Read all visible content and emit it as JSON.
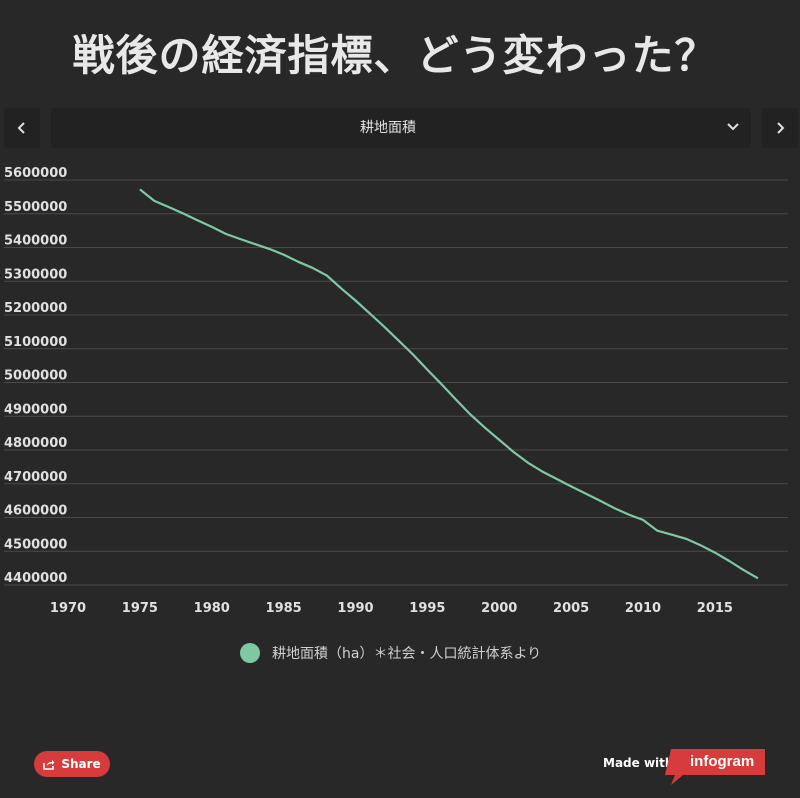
{
  "header": {
    "title": "戦後の経済指標、どう変わった？"
  },
  "nav": {
    "prev_icon": "chevron-left-icon",
    "next_icon": "chevron-right-icon",
    "selected": "耕地面積",
    "dropdown_icon": "chevron-down-icon"
  },
  "chart_data": {
    "type": "line",
    "title": "",
    "xlabel": "",
    "ylabel": "",
    "xlim": [
      1970,
      2018
    ],
    "ylim": [
      4400000,
      5600000
    ],
    "x_ticks": [
      "1970",
      "1975",
      "1980",
      "1985",
      "1990",
      "1995",
      "2000",
      "2005",
      "2010",
      "2015"
    ],
    "y_ticks": [
      "4400000",
      "4500000",
      "4600000",
      "4700000",
      "4800000",
      "4900000",
      "5000000",
      "5100000",
      "5200000",
      "5300000",
      "5400000",
      "5500000",
      "5600000"
    ],
    "grid": true,
    "legend_position": "bottom",
    "series": [
      {
        "name": "耕地面積（ha）＊社会・人口統計体系より",
        "color": "#7fc8a4",
        "x": [
          1975,
          1976,
          1977,
          1978,
          1979,
          1980,
          1981,
          1982,
          1983,
          1984,
          1985,
          1986,
          1987,
          1988,
          1989,
          1990,
          1991,
          1992,
          1993,
          1994,
          1995,
          1996,
          1997,
          1998,
          1999,
          2000,
          2001,
          2002,
          2003,
          2004,
          2005,
          2006,
          2007,
          2008,
          2009,
          2010,
          2011,
          2012,
          2013,
          2014,
          2015,
          2016,
          2017,
          2018
        ],
        "y": [
          5572000,
          5538000,
          5520000,
          5501000,
          5481000,
          5461000,
          5440000,
          5425000,
          5410000,
          5396000,
          5379000,
          5358000,
          5340000,
          5317000,
          5279000,
          5243000,
          5204000,
          5165000,
          5124000,
          5083000,
          5038000,
          4994000,
          4949000,
          4905000,
          4866000,
          4830000,
          4794000,
          4762000,
          4736000,
          4714000,
          4692000,
          4671000,
          4650000,
          4628000,
          4609000,
          4593000,
          4561000,
          4549000,
          4537000,
          4518000,
          4496000,
          4471000,
          4444000,
          4420000
        ]
      }
    ]
  },
  "footer": {
    "share_label": "Share",
    "share_icon": "share-icon",
    "made_with": "Made with",
    "brand": "infogram"
  }
}
